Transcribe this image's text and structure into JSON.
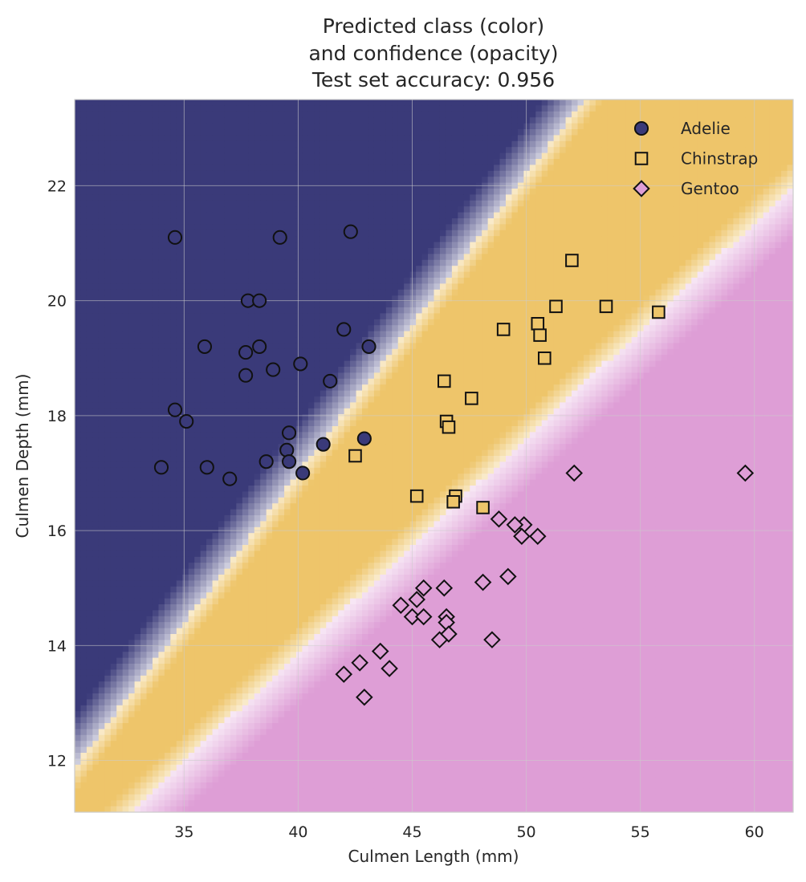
{
  "chart_data": {
    "type": "scatter",
    "title_lines": [
      "Predicted class (color)",
      "and confidence (opacity)",
      "Test set accuracy: 0.956"
    ],
    "xlabel": "Culmen Length (mm)",
    "ylabel": "Culmen Depth (mm)",
    "xlim": [
      30.2,
      61.7
    ],
    "ylim": [
      11.1,
      23.5
    ],
    "xticks": [
      35,
      40,
      45,
      50,
      55,
      60
    ],
    "yticks": [
      12,
      14,
      16,
      18,
      20,
      22
    ],
    "grid": true,
    "legend_position": "top-right",
    "background": {
      "description_free": true,
      "boundaries": [
        {
          "between": [
            "Adelie",
            "Chinstrap"
          ],
          "line": [
            [
              30.2,
              11.9
            ],
            [
              52.5,
              23.5
            ]
          ]
        },
        {
          "between": [
            "Chinstrap",
            "Gentoo"
          ],
          "line": [
            [
              30.2,
              10.2
            ],
            [
              61.7,
              22.0
            ]
          ]
        }
      ],
      "transition_width": 1.2
    },
    "series": [
      {
        "name": "Adelie",
        "marker": "circle",
        "color": "#3a3a79",
        "points": [
          [
            34.6,
            21.1
          ],
          [
            39.2,
            21.1
          ],
          [
            42.3,
            21.2
          ],
          [
            37.8,
            20.0
          ],
          [
            38.3,
            20.0
          ],
          [
            42.0,
            19.5
          ],
          [
            35.9,
            19.2
          ],
          [
            38.3,
            19.2
          ],
          [
            43.1,
            19.2
          ],
          [
            37.7,
            19.1
          ],
          [
            40.1,
            18.9
          ],
          [
            38.9,
            18.8
          ],
          [
            37.7,
            18.7
          ],
          [
            41.4,
            18.6
          ],
          [
            34.6,
            18.1
          ],
          [
            35.1,
            17.9
          ],
          [
            39.6,
            17.7
          ],
          [
            42.9,
            17.6
          ],
          [
            41.1,
            17.5
          ],
          [
            39.5,
            17.4
          ],
          [
            38.6,
            17.2
          ],
          [
            39.6,
            17.2
          ],
          [
            34.0,
            17.1
          ],
          [
            36.0,
            17.1
          ],
          [
            40.2,
            17.0
          ],
          [
            37.0,
            16.9
          ]
        ]
      },
      {
        "name": "Chinstrap",
        "marker": "square",
        "color": "#eec56a",
        "points": [
          [
            52.0,
            20.7
          ],
          [
            51.3,
            19.9
          ],
          [
            53.5,
            19.9
          ],
          [
            55.8,
            19.8
          ],
          [
            50.5,
            19.6
          ],
          [
            49.0,
            19.5
          ],
          [
            50.6,
            19.4
          ],
          [
            50.8,
            19.0
          ],
          [
            46.4,
            18.6
          ],
          [
            47.6,
            18.3
          ],
          [
            46.5,
            17.9
          ],
          [
            46.6,
            17.8
          ],
          [
            42.5,
            17.3
          ],
          [
            45.2,
            16.6
          ],
          [
            46.9,
            16.6
          ],
          [
            46.8,
            16.5
          ],
          [
            48.1,
            16.4
          ]
        ]
      },
      {
        "name": "Gentoo",
        "marker": "diamond",
        "color": "#de9ed6",
        "points": [
          [
            52.1,
            17.0
          ],
          [
            59.6,
            17.0
          ],
          [
            48.8,
            16.2
          ],
          [
            49.9,
            16.1
          ],
          [
            49.5,
            16.1
          ],
          [
            49.8,
            15.9
          ],
          [
            50.5,
            15.9
          ],
          [
            49.2,
            15.2
          ],
          [
            48.1,
            15.1
          ],
          [
            45.5,
            15.0
          ],
          [
            46.4,
            15.0
          ],
          [
            45.2,
            14.8
          ],
          [
            44.5,
            14.7
          ],
          [
            45.0,
            14.5
          ],
          [
            45.5,
            14.5
          ],
          [
            46.5,
            14.5
          ],
          [
            46.5,
            14.4
          ],
          [
            46.2,
            14.1
          ],
          [
            48.5,
            14.1
          ],
          [
            46.6,
            14.2
          ],
          [
            43.6,
            13.9
          ],
          [
            42.7,
            13.7
          ],
          [
            44.0,
            13.6
          ],
          [
            42.0,
            13.5
          ],
          [
            42.9,
            13.1
          ]
        ]
      }
    ]
  },
  "colors": {
    "Adelie": "#3a3a79",
    "Chinstrap": "#eec56a",
    "Gentoo": "#de9ed6",
    "edge": "#111111",
    "grid": "#cccccc",
    "spine": "#cccccc",
    "text": "#262626"
  }
}
